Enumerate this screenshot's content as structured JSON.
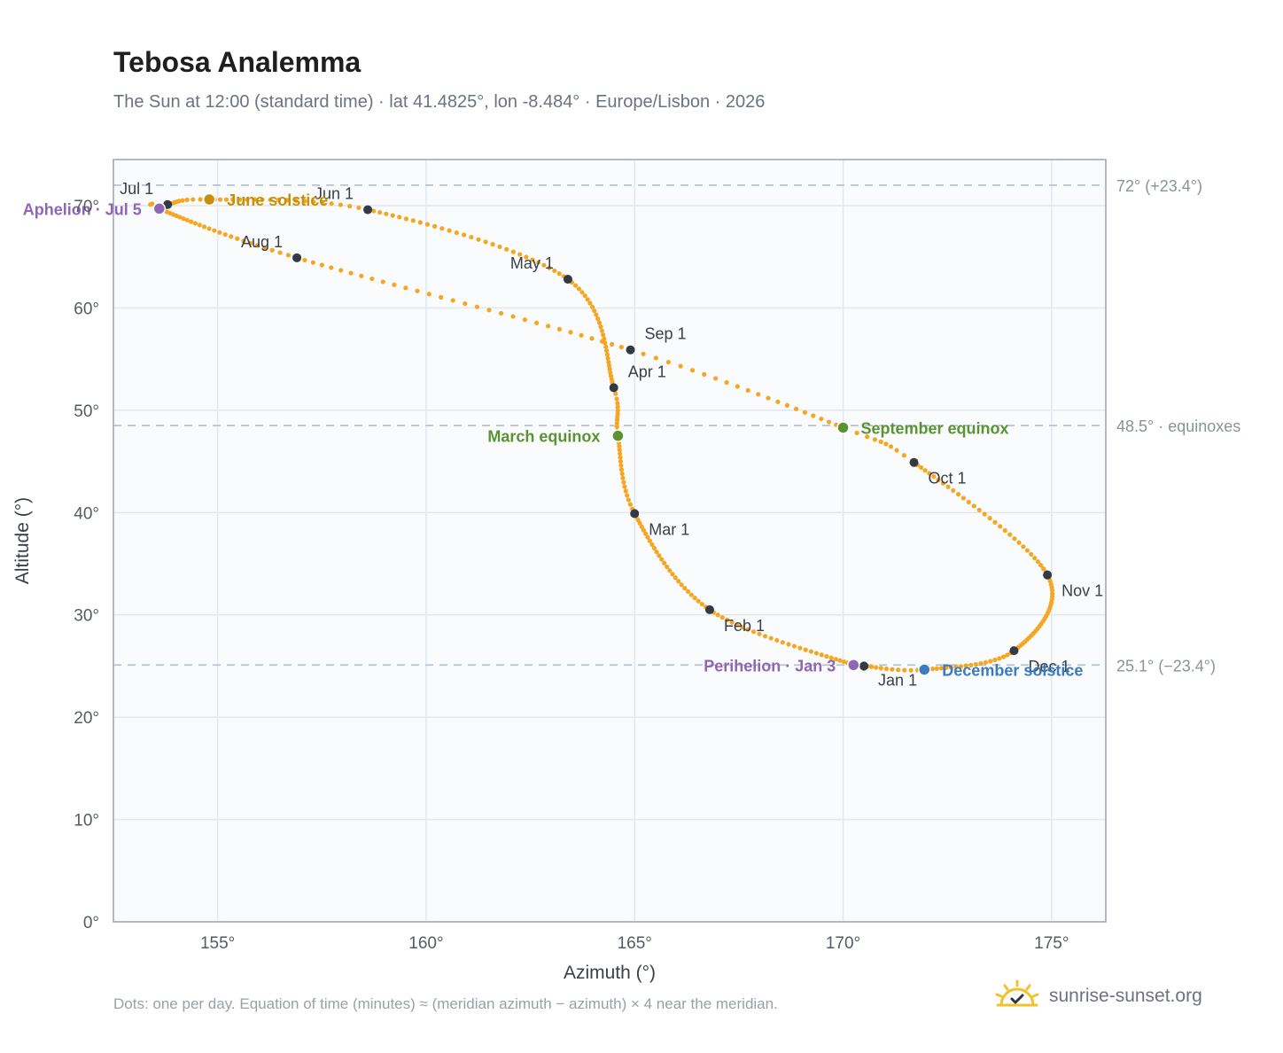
{
  "header": {
    "title": "Tebosa Analemma",
    "subtitle": "The Sun at 12:00 (standard time) · lat 41.4825°, lon -8.484° · Europe/Lisbon · 2026"
  },
  "footer": {
    "note": "Dots: one per day. Equation of time (minutes) ≈ (meridian azimuth − azimuth) × 4 near the meridian.",
    "brand": "sunrise-sunset.org"
  },
  "colors": {
    "path": "#f5a623",
    "month_marker": "#333a44",
    "equinox": "#5a9432",
    "june_solstice": "#c8900a",
    "december_solstice": "#3b7bbf",
    "apsis": "#8e66b8",
    "reference_line": "#b7c3cf",
    "plot_bg": "#f9fbfd",
    "axis": "#9aa4b2"
  },
  "chart_data": {
    "type": "scatter",
    "title": "Tebosa Analemma",
    "subtitle": "The Sun at 12:00 (standard time) · lat 41.4825°, lon -8.484° · Europe/Lisbon · 2026",
    "xlabel": "Azimuth (°)",
    "ylabel": "Altitude (°)",
    "xlim": [
      152.5,
      176.3
    ],
    "ylim": [
      0,
      74.5
    ],
    "x_ticks": [
      155,
      160,
      165,
      170,
      175
    ],
    "y_ticks": [
      0,
      10,
      20,
      30,
      40,
      50,
      60,
      70
    ],
    "grid": true,
    "path_anchors": [
      {
        "day": 1,
        "x": 170.5,
        "y": 25.0
      },
      {
        "day": 3,
        "x": 170.25,
        "y": 25.1
      },
      {
        "day": 32,
        "x": 166.8,
        "y": 30.5
      },
      {
        "day": 60,
        "x": 165.0,
        "y": 39.9
      },
      {
        "day": 79,
        "x": 164.6,
        "y": 47.5
      },
      {
        "day": 91,
        "x": 164.5,
        "y": 52.2
      },
      {
        "day": 121,
        "x": 163.4,
        "y": 62.8
      },
      {
        "day": 152,
        "x": 158.6,
        "y": 69.6
      },
      {
        "day": 172,
        "x": 154.8,
        "y": 70.6
      },
      {
        "day": 182,
        "x": 153.8,
        "y": 70.1
      },
      {
        "day": 186,
        "x": 153.6,
        "y": 69.7
      },
      {
        "day": 213,
        "x": 156.9,
        "y": 64.9
      },
      {
        "day": 244,
        "x": 164.9,
        "y": 55.9
      },
      {
        "day": 265,
        "x": 170.0,
        "y": 48.3
      },
      {
        "day": 274,
        "x": 171.7,
        "y": 44.9
      },
      {
        "day": 305,
        "x": 174.9,
        "y": 33.9
      },
      {
        "day": 335,
        "x": 174.1,
        "y": 26.5
      },
      {
        "day": 355,
        "x": 171.95,
        "y": 24.65
      },
      {
        "day": 366,
        "x": 170.5,
        "y": 25.0
      }
    ],
    "month_markers": [
      {
        "label": "Jan 1",
        "x": 170.5,
        "y": 25.0,
        "anchor": "start",
        "dx": 16,
        "dy": 22
      },
      {
        "label": "Feb 1",
        "x": 166.8,
        "y": 30.5,
        "anchor": "start",
        "dx": 16,
        "dy": 24
      },
      {
        "label": "Mar 1",
        "x": 165.0,
        "y": 39.9,
        "anchor": "start",
        "dx": 16,
        "dy": 24
      },
      {
        "label": "Apr 1",
        "x": 164.5,
        "y": 52.2,
        "anchor": "start",
        "dx": 16,
        "dy": -12
      },
      {
        "label": "May 1",
        "x": 163.4,
        "y": 62.8,
        "anchor": "end",
        "dx": -16,
        "dy": -12
      },
      {
        "label": "Jun 1",
        "x": 158.6,
        "y": 69.6,
        "anchor": "end",
        "dx": -16,
        "dy": -12
      },
      {
        "label": "Jul 1",
        "x": 153.8,
        "y": 70.1,
        "anchor": "end",
        "dx": -16,
        "dy": -12
      },
      {
        "label": "Aug 1",
        "x": 156.9,
        "y": 64.9,
        "anchor": "end",
        "dx": -16,
        "dy": -12
      },
      {
        "label": "Sep 1",
        "x": 164.9,
        "y": 55.9,
        "anchor": "start",
        "dx": 16,
        "dy": -12
      },
      {
        "label": "Oct 1",
        "x": 171.7,
        "y": 44.9,
        "anchor": "start",
        "dx": 16,
        "dy": 24
      },
      {
        "label": "Nov 1",
        "x": 174.9,
        "y": 33.9,
        "anchor": "start",
        "dx": 16,
        "dy": 24
      },
      {
        "label": "Dec 1",
        "x": 174.1,
        "y": 26.5,
        "anchor": "start",
        "dx": 16,
        "dy": 24
      }
    ],
    "events": [
      {
        "label": "March equinox",
        "x": 164.6,
        "y": 47.5,
        "color": "#5a9432",
        "anchor": "end",
        "dx": -20,
        "dy": 7
      },
      {
        "label": "September equinox",
        "x": 170.0,
        "y": 48.3,
        "color": "#5a9432",
        "anchor": "start",
        "dx": 20,
        "dy": 7
      },
      {
        "label": "June solstice",
        "x": 154.8,
        "y": 70.6,
        "color": "#c8900a",
        "anchor": "start",
        "dx": 20,
        "dy": 7
      },
      {
        "label": "December solstice",
        "x": 171.95,
        "y": 24.65,
        "color": "#3b7bbf",
        "anchor": "start",
        "dx": 20,
        "dy": 7
      },
      {
        "label": "Aphelion · Jul 5",
        "x": 153.6,
        "y": 69.7,
        "color": "#8e66b8",
        "anchor": "end",
        "dx": -20,
        "dy": 7
      },
      {
        "label": "Perihelion · Jan 3",
        "x": 170.25,
        "y": 25.1,
        "color": "#8e66b8",
        "anchor": "end",
        "dx": -20,
        "dy": 7
      }
    ],
    "reference_lines": [
      {
        "y": 72.0,
        "label": "72° (+23.4°)"
      },
      {
        "y": 48.5,
        "label": "48.5° · equinoxes"
      },
      {
        "y": 25.1,
        "label": "25.1° (−23.4°)"
      }
    ]
  }
}
